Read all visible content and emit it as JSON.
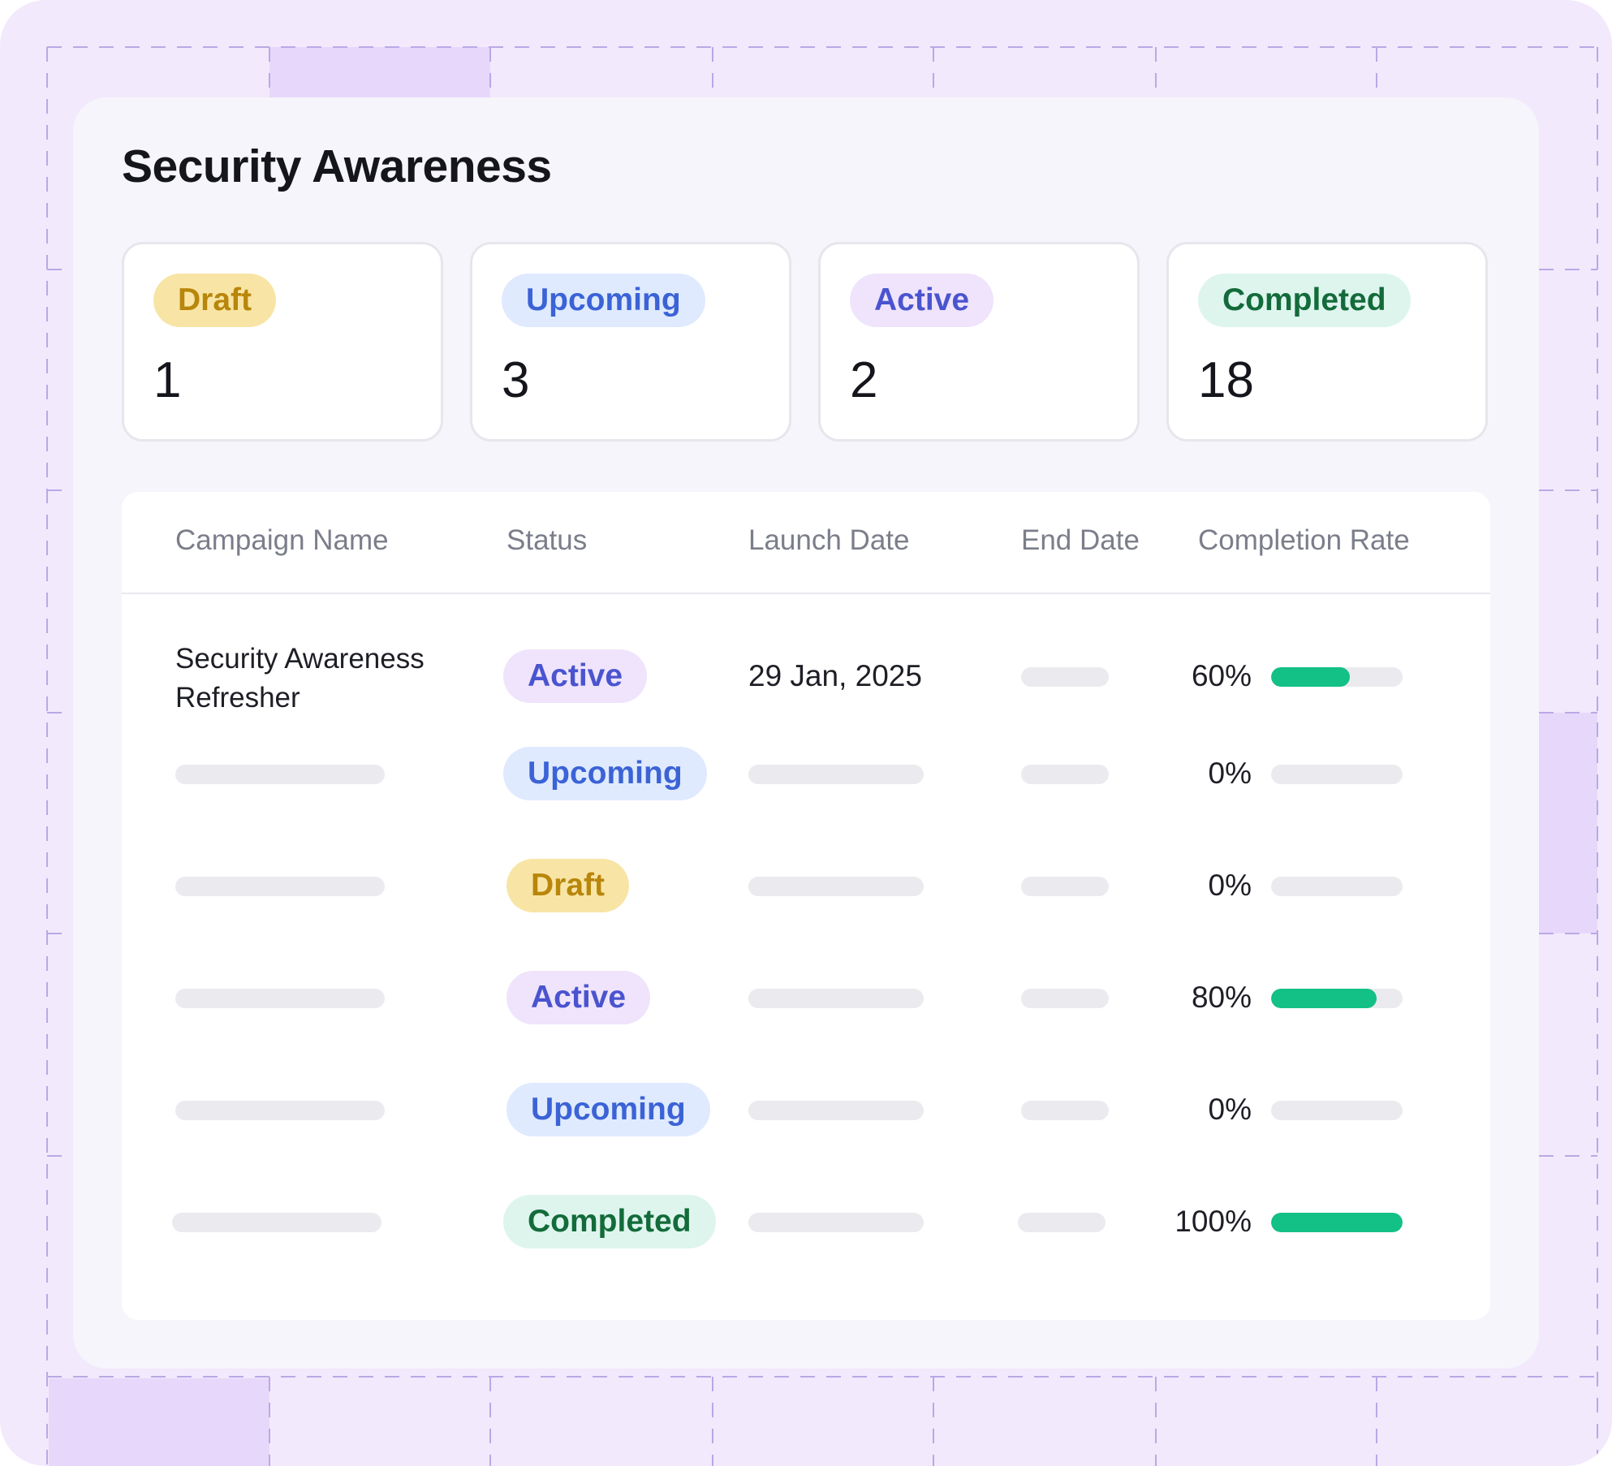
{
  "page": {
    "title": "Security Awareness"
  },
  "stats": [
    {
      "label": "Draft",
      "variant": "draft",
      "value": "1"
    },
    {
      "label": "Upcoming",
      "variant": "upcoming",
      "value": "3"
    },
    {
      "label": "Active",
      "variant": "active",
      "value": "2"
    },
    {
      "label": "Completed",
      "variant": "completed",
      "value": "18"
    }
  ],
  "table": {
    "columns": [
      "Campaign Name",
      "Status",
      "Launch Date",
      "End Date",
      "Completion Rate"
    ],
    "rows": [
      {
        "name": "Security Awareness Refresher",
        "status": "Active",
        "variant": "active",
        "launch_date": "29 Jan, 2025",
        "completion_label": "60%",
        "completion_fraction": 0.6
      },
      {
        "name": "",
        "status": "Upcoming",
        "variant": "upcoming",
        "launch_date": "",
        "completion_label": "0%",
        "completion_fraction": 0
      },
      {
        "name": "",
        "status": "Draft",
        "variant": "draft",
        "launch_date": "",
        "completion_label": "0%",
        "completion_fraction": 0
      },
      {
        "name": "",
        "status": "Active",
        "variant": "active",
        "launch_date": "",
        "completion_label": "80%",
        "completion_fraction": 0.8
      },
      {
        "name": "",
        "status": "Upcoming",
        "variant": "upcoming",
        "launch_date": "",
        "completion_label": "0%",
        "completion_fraction": 0
      },
      {
        "name": "",
        "status": "Completed",
        "variant": "completed",
        "launch_date": "",
        "completion_label": "100%",
        "completion_fraction": 1
      }
    ]
  },
  "colors": {
    "frame_bg": "#f2e9fc",
    "panel_bg": "#f6f5fb",
    "progress": "#13c086",
    "skeleton": "#ebebef"
  }
}
